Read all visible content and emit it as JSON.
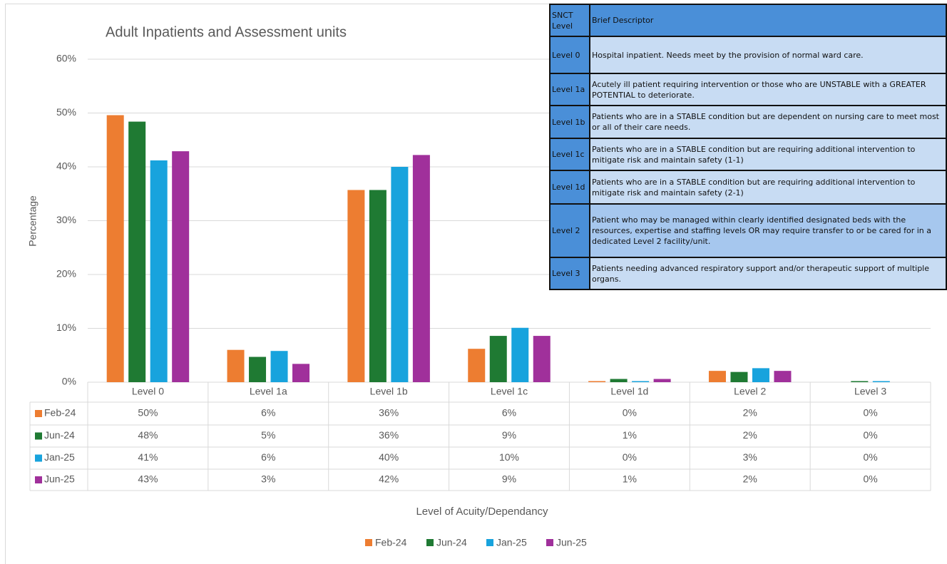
{
  "chart_data": {
    "type": "bar",
    "title": "Adult Inpatients and Assessment units",
    "xlabel": "Level of Acuity/Dependancy",
    "ylabel": "Percentage",
    "categories": [
      "Level 0",
      "Level 1a",
      "Level 1b",
      "Level 1c",
      "Level 1d",
      "Level 2",
      "Level 3"
    ],
    "series": [
      {
        "name": "Feb-24",
        "color": "#ed7d31",
        "values": [
          49.6,
          6,
          35.7,
          6.2,
          0.2,
          2.1,
          0
        ],
        "value_labels": [
          "50%",
          "6%",
          "36%",
          "6%",
          "0%",
          "2%",
          "0%"
        ]
      },
      {
        "name": "Jun-24",
        "color": "#1f7a33",
        "values": [
          48.4,
          4.7,
          35.7,
          8.6,
          0.6,
          1.9,
          0.2
        ],
        "value_labels": [
          "48%",
          "5%",
          "36%",
          "9%",
          "1%",
          "2%",
          "0%"
        ]
      },
      {
        "name": "Jan-25",
        "color": "#18a3dd",
        "values": [
          41.2,
          5.8,
          40,
          10.1,
          0.2,
          2.6,
          0.2
        ],
        "value_labels": [
          "41%",
          "6%",
          "40%",
          "10%",
          "0%",
          "3%",
          "0%"
        ]
      },
      {
        "name": "Jun-25",
        "color": "#a0309b",
        "values": [
          42.9,
          3.4,
          42.2,
          8.6,
          0.6,
          2.1,
          0
        ],
        "value_labels": [
          "43%",
          "3%",
          "42%",
          "9%",
          "1%",
          "2%",
          "0%"
        ]
      }
    ],
    "ylim": [
      0,
      60
    ],
    "yticks": [
      {
        "value": 0,
        "label": "0%"
      },
      {
        "value": 10,
        "label": "10%"
      },
      {
        "value": 20,
        "label": "20%"
      },
      {
        "value": 30,
        "label": "30%"
      },
      {
        "value": 40,
        "label": "40%"
      },
      {
        "value": 50,
        "label": "50%"
      },
      {
        "value": 60,
        "label": "60%"
      }
    ],
    "grid": true,
    "legend": "bottom"
  },
  "descriptor_table": {
    "header": [
      "SNCT Level",
      "Brief Descriptor"
    ],
    "rows": [
      [
        "Level 0",
        "Hospital inpatient. Needs meet by the provision of normal ward care."
      ],
      [
        "Level 1a",
        "Acutely ill patient requiring intervention or those who are UNSTABLE with a GREATER POTENTIAL to deteriorate."
      ],
      [
        "Level 1b",
        "Patients who are in a STABLE condition but are dependent on nursing care to meet most or all of their care needs."
      ],
      [
        "Level 1c",
        "Patients who are in a STABLE condition but are requiring additional intervention to mitigate risk and maintain safety (1-1)"
      ],
      [
        "Level 1d",
        "Patients who are in a STABLE condition but are requiring additional intervention to mitigate risk and maintain safety (2-1)"
      ],
      [
        "Level 2",
        "Patient who may be managed within clearly identified designated beds with the resources, expertise and staffing levels OR may require transfer to or be cared for in a dedicated Level 2 facility/unit."
      ],
      [
        "Level 3",
        "Patients needing advanced respiratory support and/or therapeutic support of multiple organs."
      ]
    ]
  }
}
